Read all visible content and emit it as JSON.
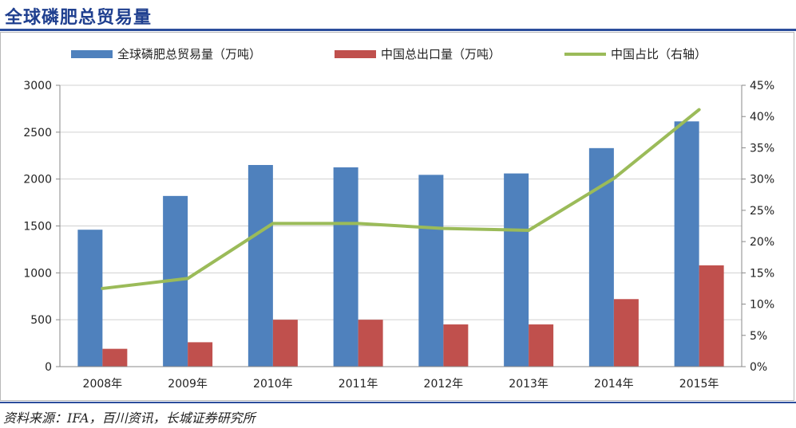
{
  "header": {
    "title": "全球磷肥总贸易量"
  },
  "footer": {
    "source": "资料来源：IFA，百川资讯，长城证券研究所"
  },
  "colors": {
    "bar_global": "#4f81bd",
    "bar_china": "#c0504d",
    "line_share": "#9bbb59",
    "title": "#1f3f8f",
    "rule": "#2b4d9c"
  },
  "chart_data": {
    "type": "bar",
    "categories": [
      "2008年",
      "2009年",
      "2010年",
      "2011年",
      "2012年",
      "2013年",
      "2014年",
      "2015年"
    ],
    "series": [
      {
        "name": "全球磷肥总贸易量（万吨）",
        "type": "bar",
        "axis": "left",
        "values": [
          1460,
          1820,
          2150,
          2125,
          2045,
          2060,
          2330,
          2615
        ]
      },
      {
        "name": "中国总出口量（万吨）",
        "type": "bar",
        "axis": "left",
        "values": [
          190,
          260,
          500,
          500,
          450,
          450,
          720,
          1080
        ]
      },
      {
        "name": "中国占比（右轴）",
        "type": "line",
        "axis": "right",
        "values": [
          0.125,
          0.141,
          0.229,
          0.229,
          0.221,
          0.218,
          0.301,
          0.411
        ]
      }
    ],
    "left_axis": {
      "ylim": [
        0,
        3000
      ],
      "ticks": [
        "0",
        "500",
        "1000",
        "1500",
        "2000",
        "2500",
        "3000"
      ]
    },
    "right_axis": {
      "ylim": [
        0,
        0.45
      ],
      "ticks": [
        "0%",
        "5%",
        "10%",
        "15%",
        "20%",
        "25%",
        "30%",
        "35%",
        "40%",
        "45%"
      ]
    },
    "grid": true,
    "legend_position": "top"
  }
}
